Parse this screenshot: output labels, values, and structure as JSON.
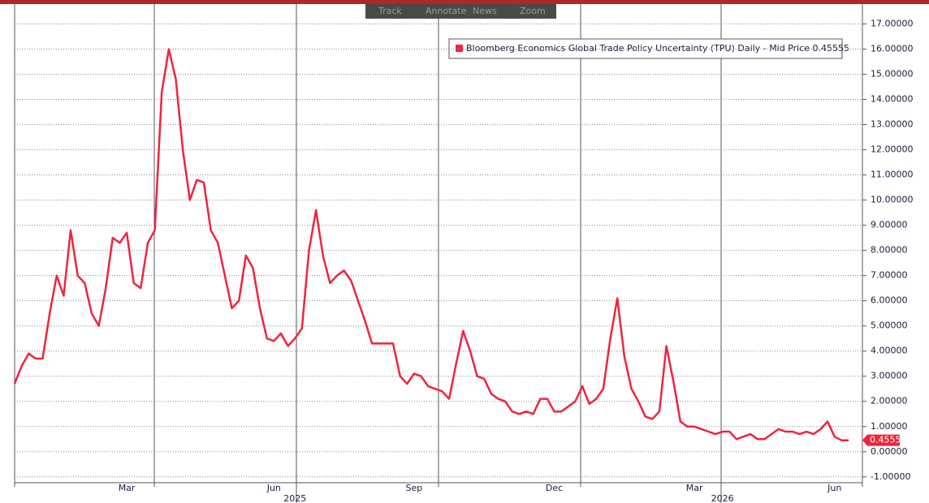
{
  "chart_data": {
    "type": "line",
    "toolbar": [
      "Track",
      "Annotate",
      "News",
      "Zoom"
    ],
    "categories": [
      null,
      null,
      null,
      null,
      null,
      null,
      null,
      null,
      null,
      null,
      null,
      null,
      null,
      null,
      null,
      null,
      "Mar",
      null,
      null,
      null,
      null,
      null,
      null,
      null,
      null,
      null,
      null,
      null,
      null,
      null,
      null,
      null,
      null,
      null,
      null,
      null,
      null,
      "Jun",
      null,
      null,
      null,
      null,
      null,
      null,
      null,
      null,
      null,
      null,
      null,
      null,
      null,
      null,
      null,
      null,
      null,
      null,
      null,
      "Sep",
      null,
      null,
      null,
      null,
      null,
      null,
      null,
      null,
      null,
      null,
      null,
      null,
      null,
      null,
      null,
      null,
      null,
      null,
      null,
      "Dec",
      null,
      null,
      null,
      null,
      null,
      null,
      null,
      null,
      null,
      null,
      null,
      null,
      null,
      null,
      null,
      null,
      null,
      null,
      null,
      "Mar",
      null,
      null,
      null,
      null,
      null,
      null,
      null,
      null,
      null,
      null,
      null,
      null,
      null,
      null,
      null,
      null,
      null,
      null,
      null,
      "Jun",
      null,
      null
    ],
    "year_labels": [
      "2025",
      "2026"
    ],
    "series": [
      {
        "name": "Bloomberg Economics Global Trade Policy Uncertainty (TPU) Daily - Mid Price 0.45555",
        "color": "#f0243c",
        "values": [
          2.7,
          3.4,
          3.9,
          3.7,
          3.7,
          5.5,
          7.0,
          6.2,
          8.8,
          7.0,
          6.7,
          5.5,
          5.0,
          6.5,
          8.5,
          8.3,
          8.7,
          6.7,
          6.5,
          8.3,
          8.8,
          14.3,
          16.0,
          14.8,
          12.0,
          10.0,
          10.8,
          10.7,
          8.8,
          8.3,
          7.0,
          5.7,
          6.0,
          7.8,
          7.3,
          5.7,
          4.5,
          4.4,
          4.7,
          4.2,
          4.5,
          4.9,
          8.0,
          9.6,
          7.8,
          6.7,
          7.0,
          7.2,
          6.8,
          6.0,
          5.2,
          4.3,
          4.3,
          4.3,
          4.3,
          3.0,
          2.7,
          3.1,
          3.0,
          2.6,
          2.5,
          2.4,
          2.1,
          3.5,
          4.8,
          4.0,
          3.0,
          2.9,
          2.3,
          2.1,
          2.0,
          1.6,
          1.5,
          1.6,
          1.5,
          2.1,
          2.1,
          1.6,
          1.6,
          1.8,
          2.0,
          2.6,
          1.9,
          2.1,
          2.5,
          4.5,
          6.1,
          3.8,
          2.5,
          2.0,
          1.4,
          1.3,
          1.6,
          4.2,
          2.8,
          1.2,
          1.0,
          1.0,
          0.9,
          0.8,
          0.7,
          0.8,
          0.8,
          0.5,
          0.6,
          0.7,
          0.5,
          0.5,
          0.7,
          0.9,
          0.8,
          0.8,
          0.7,
          0.8,
          0.7,
          0.9,
          1.2,
          0.6,
          0.45,
          0.45555
        ]
      }
    ],
    "ylim": [
      -1.2,
      17.5
    ],
    "yticks": [
      {
        "value": 17,
        "label": "17.00000"
      },
      {
        "value": 16,
        "label": "16.00000"
      },
      {
        "value": 15,
        "label": "15.00000"
      },
      {
        "value": 14,
        "label": "14.00000"
      },
      {
        "value": 13,
        "label": "13.00000"
      },
      {
        "value": 12,
        "label": "12.00000"
      },
      {
        "value": 11,
        "label": "11.00000"
      },
      {
        "value": 10,
        "label": "10.00000"
      },
      {
        "value": 9,
        "label": "9.00000"
      },
      {
        "value": 8,
        "label": "8.00000"
      },
      {
        "value": 7,
        "label": "7.00000"
      },
      {
        "value": 6,
        "label": "6.00000"
      },
      {
        "value": 5,
        "label": "5.00000"
      },
      {
        "value": 4,
        "label": "4.00000"
      },
      {
        "value": 3,
        "label": "3.00000"
      },
      {
        "value": 2,
        "label": "2.00000"
      },
      {
        "value": 1,
        "label": "1.00000"
      },
      {
        "value": 0,
        "label": "0.00000"
      },
      {
        "value": -1,
        "label": "-1.00000"
      }
    ],
    "grid": true
  }
}
